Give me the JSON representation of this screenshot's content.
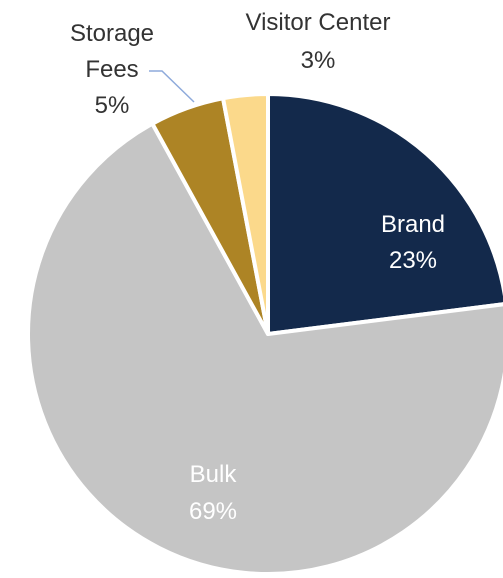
{
  "chart_data": {
    "type": "pie",
    "title": "",
    "slices": [
      {
        "name": "Brand",
        "pct_label": "23%",
        "value": 23,
        "color": "#13294b",
        "label_color": "#ffffff"
      },
      {
        "name": "Bulk",
        "pct_label": "69%",
        "value": 69,
        "color": "#c5c5c5",
        "label_color": "#ffffff"
      },
      {
        "name": "Storage Fees",
        "name_lines": [
          "Storage",
          "Fees"
        ],
        "pct_label": "5%",
        "value": 5,
        "color": "#ad8425",
        "label_color": "#333333"
      },
      {
        "name": "Visitor Center",
        "pct_label": "3%",
        "value": 3,
        "color": "#fbd98b",
        "label_color": "#333333"
      }
    ]
  }
}
